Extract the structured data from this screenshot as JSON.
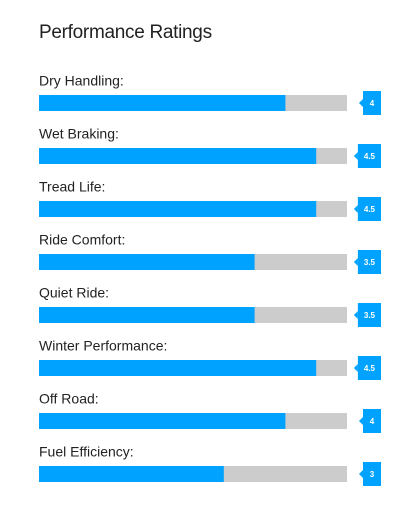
{
  "chart_data": {
    "type": "bar",
    "orientation": "horizontal",
    "title": "Performance Ratings",
    "categories": [
      "Dry Handling:",
      "Wet Braking:",
      "Tread Life:",
      "Ride Comfort:",
      "Quiet Ride:",
      "Winter Performance:",
      "Off Road:",
      "Fuel Efficiency:"
    ],
    "values": [
      4,
      4.5,
      4.5,
      3.5,
      3.5,
      4.5,
      4,
      3
    ],
    "color": "#00a2ff",
    "track_color": "#cccccc",
    "xlim": [
      0,
      5
    ]
  }
}
